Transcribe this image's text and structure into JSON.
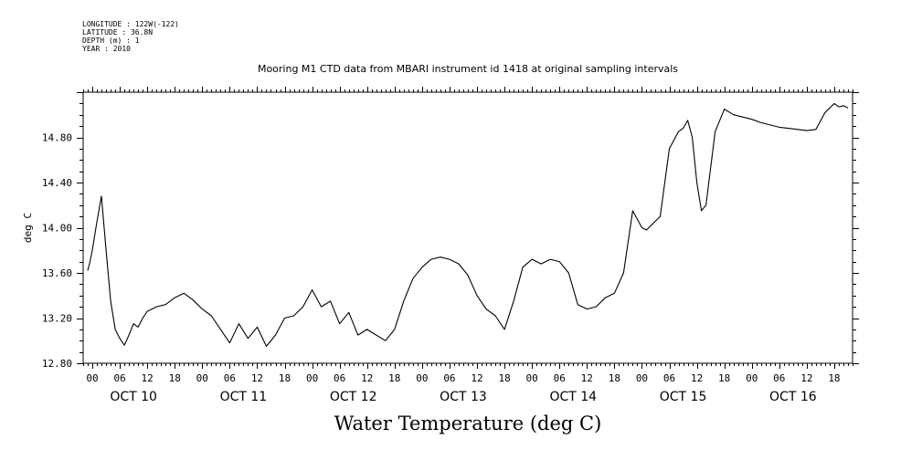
{
  "meta": {
    "longitude": "LONGITUDE : 122W(-122)",
    "latitude": "LATITUDE : 36.8N",
    "depth": "DEPTH (m) : 1",
    "year": "YEAR : 2010"
  },
  "title": "Mooring M1 CTD data from MBARI instrument id 1418 at original sampling intervals",
  "footer": "Water Temperature (deg C)",
  "chart_data": {
    "type": "line",
    "title": "Mooring M1 CTD data from MBARI instrument id 1418 at original sampling intervals",
    "ylabel": "deg C",
    "xlabel": "",
    "ylim": [
      12.8,
      15.2
    ],
    "xlim_hours": [
      -2,
      166
    ],
    "y_ticks": [
      "12.80",
      "13.20",
      "13.60",
      "14.00",
      "14.40",
      "14.80"
    ],
    "hour_tick_labels": [
      "00",
      "06",
      "12",
      "18"
    ],
    "day_labels": [
      "OCT 10",
      "OCT 11",
      "OCT 12",
      "OCT 13",
      "OCT 14",
      "OCT 15",
      "OCT 16"
    ],
    "grid": false,
    "series": [
      {
        "name": "",
        "x_hours_from_oct10_00": [
          -1,
          -0.5,
          0,
          1,
          2,
          3,
          4,
          5,
          6,
          7,
          8,
          9,
          10,
          11,
          12,
          14,
          16,
          18,
          20,
          22,
          24,
          26,
          28,
          30,
          32,
          34,
          36,
          38,
          40,
          42,
          44,
          46,
          48,
          50,
          52,
          54,
          56,
          58,
          60,
          62,
          64,
          66,
          68,
          70,
          72,
          74,
          76,
          78,
          80,
          82,
          84,
          86,
          88,
          90,
          92,
          94,
          96,
          98,
          100,
          102,
          104,
          106,
          108,
          110,
          112,
          114,
          116,
          118,
          120,
          121,
          122,
          124,
          126,
          128,
          129,
          130,
          131,
          132,
          133,
          134,
          136,
          138,
          140,
          142,
          144,
          146,
          148,
          150,
          152,
          154,
          156,
          158,
          160,
          162,
          163,
          164,
          165
        ],
        "values": [
          13.62,
          13.7,
          13.8,
          14.05,
          14.28,
          13.8,
          13.35,
          13.1,
          13.02,
          12.96,
          13.05,
          13.15,
          13.12,
          13.2,
          13.26,
          13.3,
          13.32,
          13.38,
          13.42,
          13.36,
          13.28,
          13.22,
          13.1,
          12.98,
          13.15,
          13.02,
          13.12,
          12.95,
          13.05,
          13.2,
          13.22,
          13.3,
          13.45,
          13.3,
          13.35,
          13.15,
          13.25,
          13.05,
          13.1,
          13.05,
          13.0,
          13.1,
          13.35,
          13.55,
          13.65,
          13.72,
          13.74,
          13.72,
          13.68,
          13.58,
          13.4,
          13.28,
          13.22,
          13.1,
          13.35,
          13.65,
          13.72,
          13.68,
          13.72,
          13.7,
          13.6,
          13.32,
          13.28,
          13.3,
          13.38,
          13.42,
          13.6,
          14.15,
          14.0,
          13.98,
          14.02,
          14.1,
          14.7,
          14.85,
          14.88,
          14.95,
          14.8,
          14.4,
          14.15,
          14.2,
          14.85,
          15.05,
          15.0,
          14.98,
          14.96,
          14.93,
          14.91,
          14.89,
          14.88,
          14.87,
          14.86,
          14.87,
          15.02,
          15.1,
          15.07,
          15.08,
          15.06
        ]
      }
    ]
  }
}
